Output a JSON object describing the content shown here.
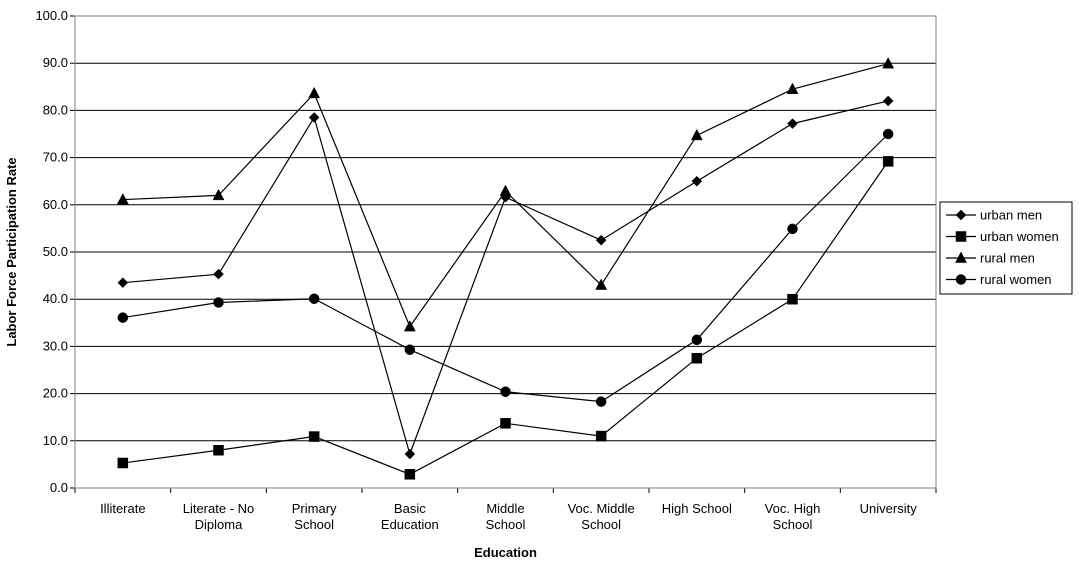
{
  "chart_data": {
    "type": "line",
    "xlabel": "Education",
    "ylabel": "Labor Force Participation Rate",
    "ylim": [
      0,
      100
    ],
    "ytick_step": 10,
    "ytick_labels": [
      "0.0",
      "10.0",
      "20.0",
      "30.0",
      "40.0",
      "50.0",
      "60.0",
      "70.0",
      "80.0",
      "90.0",
      "100.0"
    ],
    "grid": "horizontal",
    "legend_position": "right",
    "categories": [
      [
        "Illiterate"
      ],
      [
        "Literate - No",
        "Diploma"
      ],
      [
        "Primary",
        "School"
      ],
      [
        "Basic",
        "Education"
      ],
      [
        "Middle",
        "School"
      ],
      [
        "Voc. Middle",
        "School"
      ],
      [
        "High School"
      ],
      [
        "Voc. High",
        "School"
      ],
      [
        "University"
      ]
    ],
    "series": [
      {
        "name": "urban men",
        "marker": "diamond",
        "values": [
          43.5,
          45.3,
          78.5,
          7.2,
          61.6,
          52.5,
          65.0,
          77.2,
          82.0
        ]
      },
      {
        "name": "urban women",
        "marker": "square",
        "values": [
          5.3,
          8.0,
          10.9,
          2.9,
          13.7,
          11.0,
          27.5,
          40.0,
          69.2
        ]
      },
      {
        "name": "rural men",
        "marker": "triangle",
        "values": [
          61.1,
          62.0,
          83.6,
          34.2,
          62.9,
          43.0,
          74.7,
          84.5,
          89.9
        ]
      },
      {
        "name": "rural women",
        "marker": "circle",
        "values": [
          36.1,
          39.3,
          40.1,
          29.3,
          20.4,
          18.3,
          31.4,
          54.9,
          75.0
        ]
      }
    ],
    "colors": {
      "line": "#000000",
      "grid": "#000000",
      "background": "#ffffff"
    }
  }
}
